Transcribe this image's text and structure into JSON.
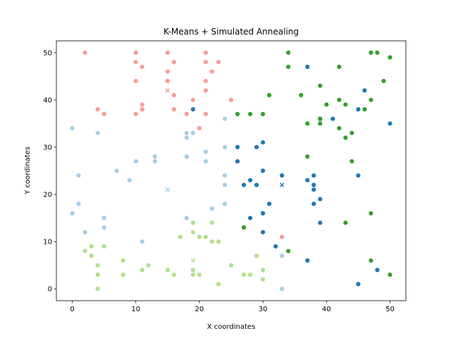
{
  "chart_data": {
    "type": "scatter",
    "title": "K-Means + Simulated Annealing",
    "xlabel": "X coordinates",
    "ylabel": "Y coordinates",
    "xlim": [
      -2.5,
      52.5
    ],
    "ylim": [
      -2.5,
      52.5
    ],
    "xticks": [
      0,
      10,
      20,
      30,
      40,
      50
    ],
    "yticks": [
      0,
      10,
      20,
      30,
      40,
      50
    ],
    "grid": false,
    "series": [
      {
        "color": "#fb9a99",
        "points": [
          [
            2,
            50
          ],
          [
            10,
            50
          ],
          [
            15,
            50
          ],
          [
            21,
            50
          ],
          [
            10,
            48
          ],
          [
            16,
            48
          ],
          [
            21,
            48
          ],
          [
            23,
            48
          ],
          [
            11,
            47
          ],
          [
            15,
            46
          ],
          [
            22,
            46
          ],
          [
            10,
            44
          ],
          [
            15,
            44
          ],
          [
            21,
            44
          ],
          [
            21,
            42
          ],
          [
            16,
            41
          ],
          [
            19,
            40
          ],
          [
            25,
            40
          ],
          [
            4,
            38
          ],
          [
            11,
            39
          ],
          [
            11,
            38
          ],
          [
            16,
            38
          ],
          [
            18,
            37
          ],
          [
            21,
            37
          ],
          [
            5,
            37
          ],
          [
            10,
            37
          ],
          [
            20,
            34
          ],
          [
            33,
            11
          ]
        ],
        "centroid": [
          15,
          42
        ]
      },
      {
        "color": "#a6cee3",
        "points": [
          [
            0,
            34
          ],
          [
            4,
            33
          ],
          [
            18,
            33
          ],
          [
            19,
            33
          ],
          [
            18,
            32
          ],
          [
            24,
            36
          ],
          [
            24,
            30
          ],
          [
            21,
            29
          ],
          [
            13,
            28
          ],
          [
            18,
            28
          ],
          [
            13,
            27
          ],
          [
            10,
            27
          ],
          [
            21,
            27
          ],
          [
            7,
            25
          ],
          [
            1,
            24
          ],
          [
            24,
            24
          ],
          [
            9,
            23
          ],
          [
            24,
            22
          ],
          [
            1,
            18
          ],
          [
            24,
            18
          ],
          [
            0,
            16
          ],
          [
            22,
            17
          ],
          [
            5,
            15
          ],
          [
            18,
            15
          ],
          [
            5,
            13
          ],
          [
            2,
            12
          ],
          [
            11,
            10
          ],
          [
            33,
            7
          ],
          [
            33,
            0
          ]
        ],
        "centroid": [
          15,
          21
        ]
      },
      {
        "color": "#b2df8a",
        "points": [
          [
            19,
            14
          ],
          [
            22,
            14
          ],
          [
            19,
            12
          ],
          [
            17,
            11
          ],
          [
            20,
            11
          ],
          [
            21,
            11
          ],
          [
            22,
            10
          ],
          [
            23,
            10
          ],
          [
            2,
            8
          ],
          [
            3,
            9
          ],
          [
            5,
            9
          ],
          [
            3,
            7
          ],
          [
            8,
            6
          ],
          [
            29,
            7
          ],
          [
            4,
            5
          ],
          [
            12,
            5
          ],
          [
            25,
            5
          ],
          [
            11,
            4
          ],
          [
            15,
            4
          ],
          [
            19,
            4
          ],
          [
            30,
            4
          ],
          [
            4,
            3
          ],
          [
            8,
            3
          ],
          [
            16,
            3
          ],
          [
            19,
            3
          ],
          [
            20,
            3
          ],
          [
            27,
            3
          ],
          [
            28,
            3
          ],
          [
            30,
            2
          ],
          [
            23,
            1
          ],
          [
            4,
            0
          ],
          [
            27,
            13
          ],
          [
            30,
            16
          ]
        ],
        "centroid": [
          19,
          6
        ]
      },
      {
        "color": "#1f78b4",
        "points": [
          [
            19,
            38
          ],
          [
            37,
            47
          ],
          [
            46,
            42
          ],
          [
            45,
            38
          ],
          [
            41,
            36
          ],
          [
            50,
            35
          ],
          [
            26,
            30
          ],
          [
            30,
            31
          ],
          [
            29,
            30
          ],
          [
            26,
            27
          ],
          [
            30,
            25
          ],
          [
            33,
            24
          ],
          [
            38,
            24
          ],
          [
            37,
            23
          ],
          [
            28,
            23
          ],
          [
            27,
            22
          ],
          [
            29,
            22
          ],
          [
            38,
            22
          ],
          [
            38,
            21
          ],
          [
            45,
            24
          ],
          [
            31,
            18
          ],
          [
            38,
            18
          ],
          [
            39,
            19
          ],
          [
            30,
            16
          ],
          [
            28,
            15
          ],
          [
            39,
            14
          ],
          [
            30,
            12
          ],
          [
            32,
            9
          ],
          [
            37,
            6
          ],
          [
            48,
            4
          ],
          [
            45,
            1
          ]
        ],
        "centroid": [
          33,
          22
        ]
      },
      {
        "color": "#33a02c",
        "points": [
          [
            34,
            50
          ],
          [
            47,
            50
          ],
          [
            48,
            50
          ],
          [
            50,
            49
          ],
          [
            34,
            47
          ],
          [
            42,
            47
          ],
          [
            49,
            44
          ],
          [
            39,
            43
          ],
          [
            31,
            41
          ],
          [
            36,
            41
          ],
          [
            42,
            40
          ],
          [
            47,
            40
          ],
          [
            40,
            39
          ],
          [
            43,
            39
          ],
          [
            46,
            38
          ],
          [
            26,
            37
          ],
          [
            28,
            37
          ],
          [
            30,
            37
          ],
          [
            37,
            35
          ],
          [
            39,
            35
          ],
          [
            39,
            36
          ],
          [
            42,
            34
          ],
          [
            44,
            33
          ],
          [
            43,
            32
          ],
          [
            37,
            28
          ],
          [
            44,
            27
          ],
          [
            47,
            16
          ],
          [
            27,
            13
          ],
          [
            43,
            14
          ],
          [
            34,
            8
          ],
          [
            47,
            6
          ],
          [
            50,
            3
          ]
        ],
        "centroid": [
          39,
          36
        ]
      }
    ]
  }
}
